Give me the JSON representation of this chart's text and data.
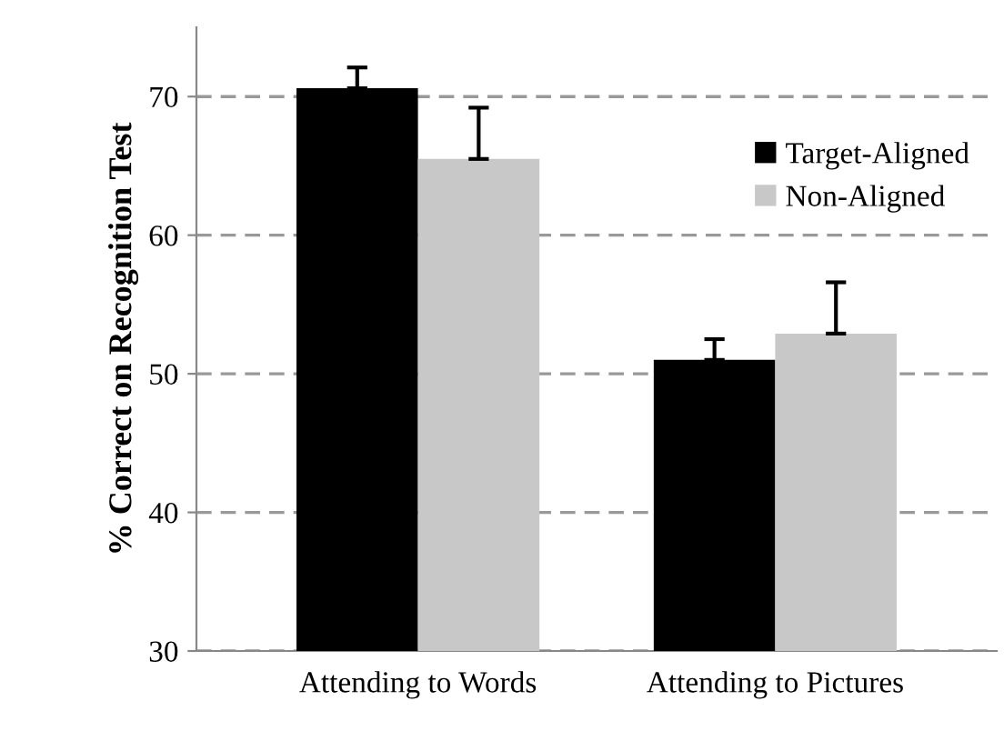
{
  "chart_data": {
    "type": "bar",
    "ylabel": "% Correct on Recognition Test",
    "categories": [
      "Attending to Words",
      "Attending to Pictures"
    ],
    "series": [
      {
        "name": "Target-Aligned",
        "color": "#000000",
        "values": [
          70.6,
          51.0
        ],
        "errors": [
          [
            70.6,
            72.1
          ],
          [
            51.0,
            52.5
          ]
        ]
      },
      {
        "name": "Non-Aligned",
        "color": "#c8c8c8",
        "values": [
          65.5,
          52.9
        ],
        "errors": [
          [
            65.5,
            69.2
          ],
          [
            52.9,
            56.6
          ]
        ]
      }
    ],
    "ylim": [
      30,
      75
    ],
    "yticks": [
      30,
      40,
      50,
      60,
      70
    ],
    "grid": "y",
    "legend": "top right"
  }
}
